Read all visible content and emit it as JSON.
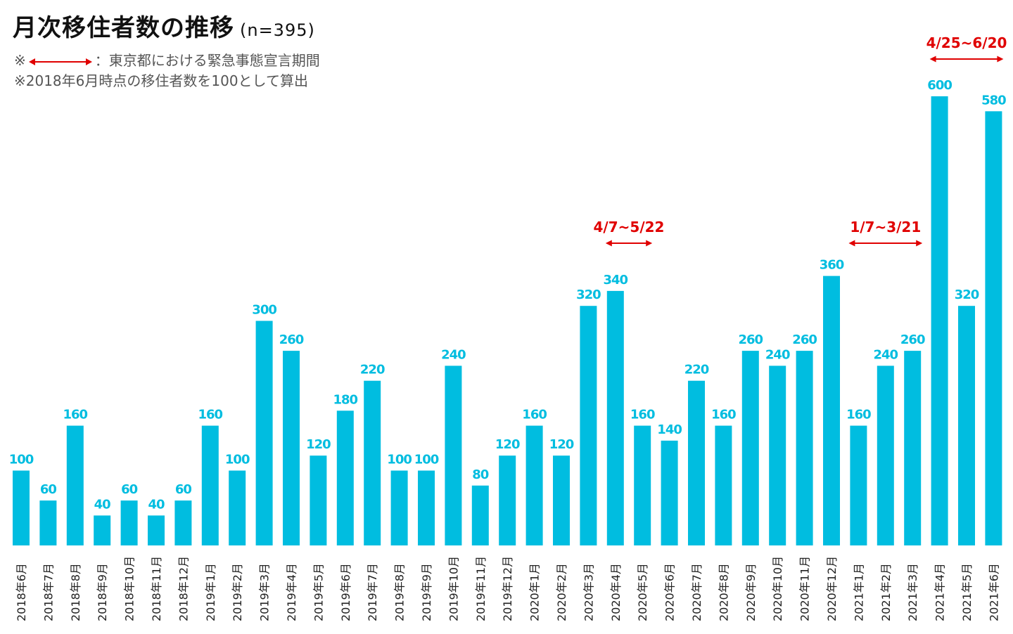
{
  "title": "月次移住者数の推移",
  "sample_size": "(n=395)",
  "notes": {
    "prefix": "※",
    "legend_text": "：東京都における緊急事態宣言期間",
    "base_note": "※2018年6月時点の移住者数を100として算出"
  },
  "colors": {
    "bar": "#00BDE0",
    "annotation": "#E00000",
    "text": "#111111"
  },
  "chart_data": {
    "type": "bar",
    "title": "月次移住者数の推移",
    "xlabel": "",
    "ylabel": "",
    "ylim": [
      0,
      620
    ],
    "grid": false,
    "categories": [
      "2018年6月",
      "2018年7月",
      "2018年8月",
      "2018年9月",
      "2018年10月",
      "2018年11月",
      "2018年12月",
      "2019年1月",
      "2019年2月",
      "2019年3月",
      "2019年4月",
      "2019年5月",
      "2019年6月",
      "2019年7月",
      "2019年8月",
      "2019年9月",
      "2019年10月",
      "2019年11月",
      "2019年12月",
      "2020年1月",
      "2020年2月",
      "2020年3月",
      "2020年4月",
      "2020年5月",
      "2020年6月",
      "2020年7月",
      "2020年8月",
      "2020年9月",
      "2020年10月",
      "2020年11月",
      "2020年12月",
      "2021年1月",
      "2021年2月",
      "2021年3月",
      "2021年4月",
      "2021年5月",
      "2021年6月"
    ],
    "values": [
      100,
      60,
      160,
      40,
      60,
      40,
      60,
      160,
      100,
      300,
      260,
      120,
      180,
      220,
      100,
      100,
      240,
      80,
      120,
      160,
      120,
      320,
      340,
      160,
      140,
      220,
      160,
      260,
      240,
      260,
      360,
      160,
      240,
      260,
      600,
      320,
      580
    ],
    "annotations": [
      {
        "label": "4/7~5/22",
        "start_index": 22,
        "end_index": 23,
        "level": 340
      },
      {
        "label": "1/7~3/21",
        "start_index": 31,
        "end_index": 33,
        "level": 340
      },
      {
        "label": "4/25~6/20",
        "start_index": 34,
        "end_index": 36,
        "level": 620
      }
    ]
  }
}
